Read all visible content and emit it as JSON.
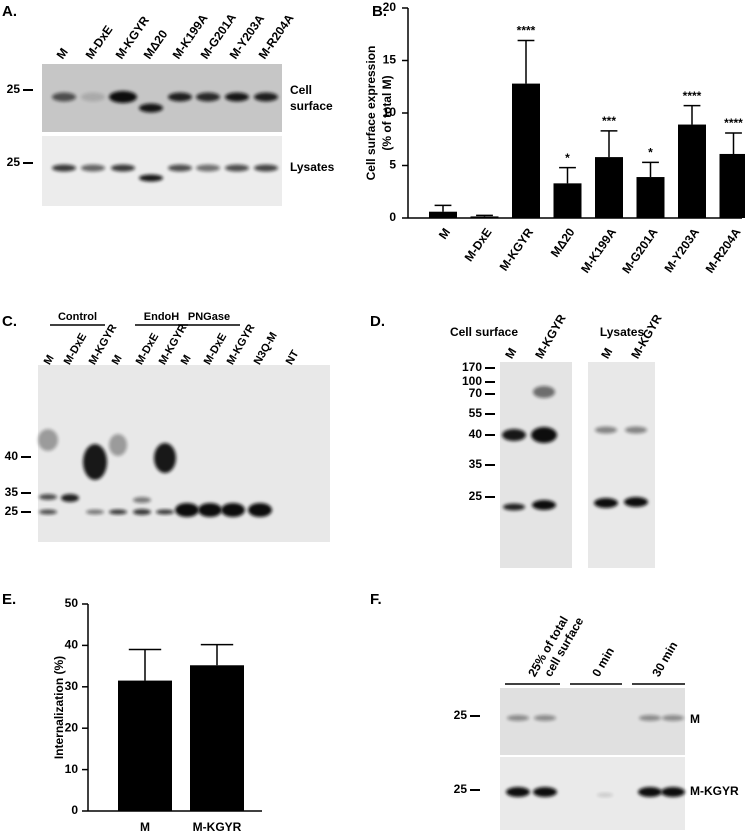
{
  "panels": {
    "A": {
      "label": "A.",
      "lanes": [
        "M",
        "M-DxE",
        "M-KGYR",
        "MΔ20",
        "M-K199A",
        "M-G201A",
        "M-Y203A",
        "M-R204A"
      ],
      "markers": [
        25,
        25
      ],
      "surface_label": [
        "Cell",
        "surface"
      ],
      "lysate_label": "Lysates"
    },
    "C": {
      "label": "C.",
      "groups": [
        "Control",
        "EndoH",
        "PNGase"
      ],
      "lanes": [
        "M",
        "M-DxE",
        "M-KGYR",
        "M",
        "M-DxE",
        "M-KGYR",
        "M",
        "M-DxE",
        "M-KGYR",
        "N3Q-M",
        "NT"
      ],
      "markers": [
        40,
        35,
        25
      ]
    },
    "D": {
      "label": "D.",
      "groups": [
        "Cell surface",
        "Lysates"
      ],
      "lanes": [
        "M",
        "M-KGYR",
        "M",
        "M-KGYR"
      ],
      "markers": [
        170,
        100,
        70,
        55,
        40,
        35,
        25
      ]
    },
    "F": {
      "label": "F.",
      "groups": [
        [
          "25% of total",
          "cell surface"
        ],
        "0 min",
        "30 min"
      ],
      "markers": [
        25,
        25
      ],
      "rows": [
        "M",
        "M-KGYR"
      ]
    }
  },
  "chart_data": [
    {
      "type": "bar",
      "panel_label": "B.",
      "y_label": [
        "Cell surface expression",
        "(% of total M)"
      ],
      "categories": [
        "M",
        "M-DxE",
        "M-KGYR",
        "MΔ20",
        "M-K199A",
        "M-G201A",
        "M-Y203A",
        "M-R204A"
      ],
      "series": [
        {
          "color": "#000000",
          "values": [
            0.6,
            0.15,
            12.8,
            3.3,
            5.8,
            3.9,
            8.9,
            6.1
          ],
          "errors": [
            0.6,
            0.1,
            4.1,
            1.5,
            2.5,
            1.4,
            1.8,
            2.0
          ]
        }
      ],
      "annotations": [
        null,
        null,
        "****",
        "*",
        "***",
        "*",
        "****",
        "****"
      ],
      "ylim": [
        0,
        20
      ],
      "yticks": [
        0,
        5,
        10,
        15,
        20
      ]
    },
    {
      "type": "bar",
      "panel_label": "E.",
      "y_label": [
        "Internalization (%)"
      ],
      "categories": [
        "M",
        "M-KGYR"
      ],
      "series": [
        {
          "color": "#000000",
          "values": [
            31.5,
            35.2
          ],
          "errors": [
            7.5,
            5.0
          ]
        }
      ],
      "ylim": [
        0,
        50
      ],
      "yticks": [
        0,
        10,
        20,
        30,
        40,
        50
      ]
    }
  ]
}
